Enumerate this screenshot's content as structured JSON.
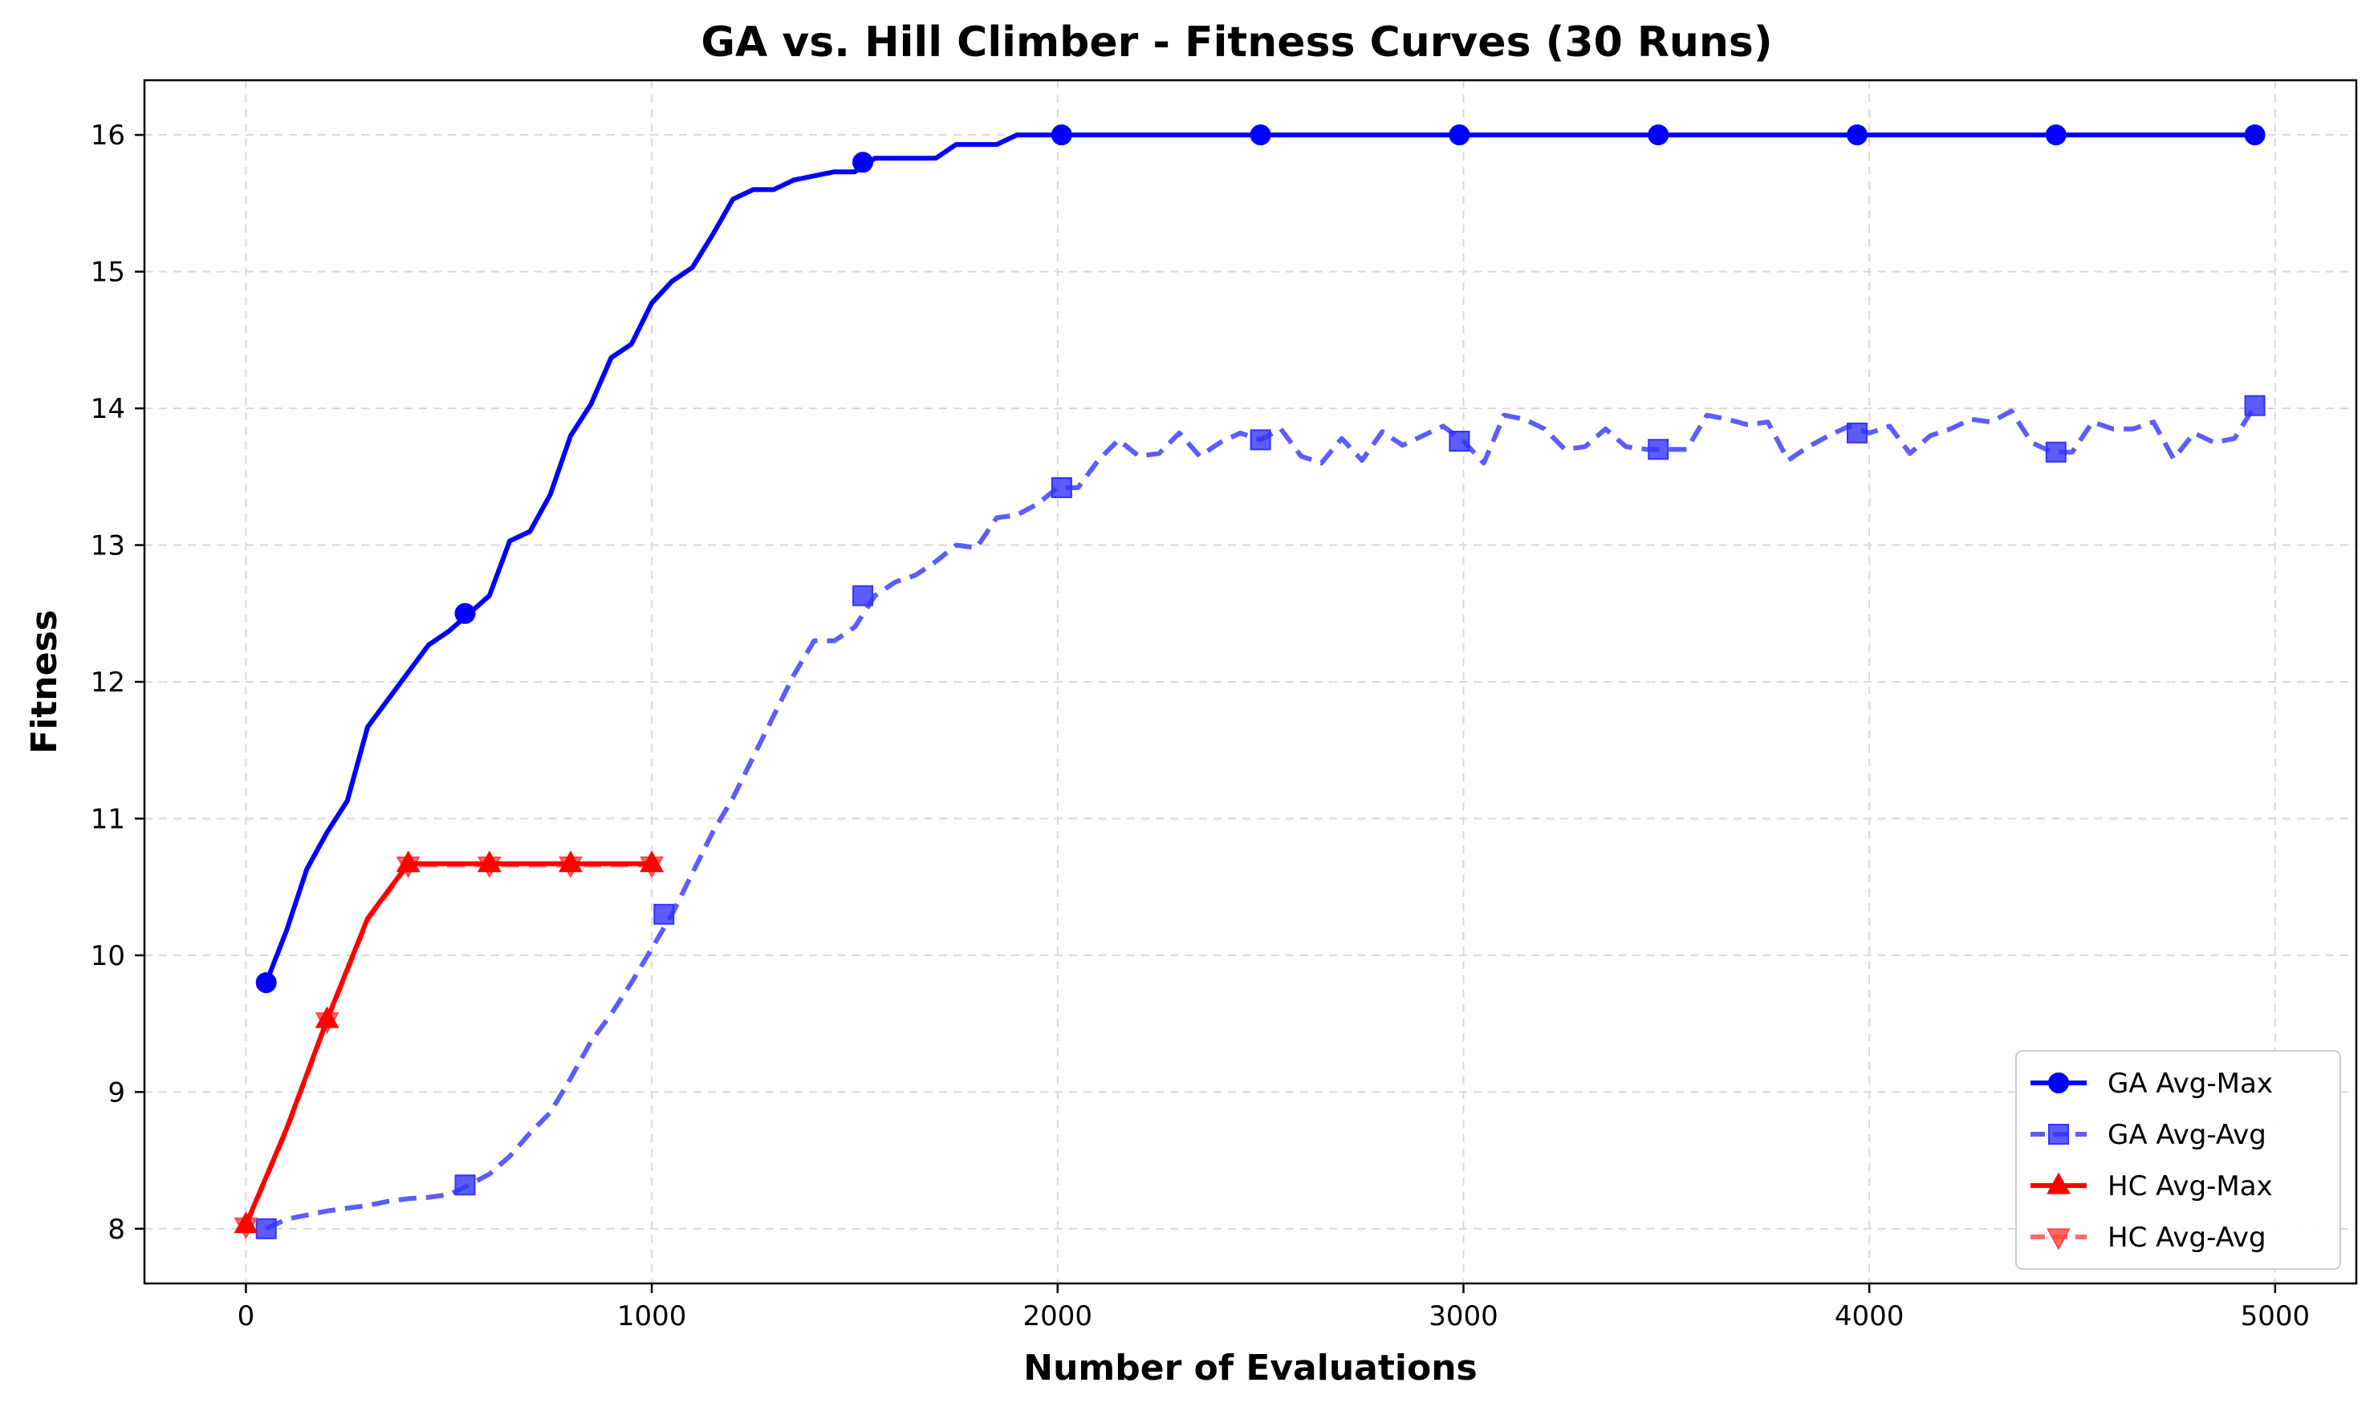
{
  "chart_data": {
    "type": "line",
    "title": "GA vs. Hill Climber - Fitness Curves (30 Runs)",
    "xlabel": "Number of Evaluations",
    "ylabel": "Fitness",
    "xlim": [
      -250,
      5200
    ],
    "ylim": [
      7.6,
      16.4
    ],
    "xticks": [
      0,
      1000,
      2000,
      3000,
      4000,
      5000
    ],
    "yticks": [
      8,
      9,
      10,
      11,
      12,
      13,
      14,
      15,
      16
    ],
    "grid": true,
    "legend_position": "lower-right",
    "series": [
      {
        "name": "GA Avg-Max",
        "color": "#0000ff",
        "linestyle": "solid",
        "marker": "circle",
        "x": [
          50,
          100,
          150,
          200,
          250,
          300,
          350,
          400,
          450,
          500,
          550,
          600,
          650,
          700,
          750,
          800,
          850,
          900,
          950,
          1000,
          1050,
          1100,
          1150,
          1200,
          1250,
          1300,
          1350,
          1400,
          1450,
          1500,
          1550,
          1600,
          1650,
          1700,
          1750,
          1800,
          1850,
          1900,
          1950,
          2000,
          2500,
          3000,
          3500,
          4000,
          4500,
          4950
        ],
        "y": [
          9.8,
          10.18,
          10.63,
          10.9,
          11.13,
          11.67,
          11.87,
          12.07,
          12.27,
          12.37,
          12.5,
          12.63,
          13.03,
          13.1,
          13.37,
          13.8,
          14.03,
          14.37,
          14.47,
          14.77,
          14.93,
          15.03,
          15.27,
          15.53,
          15.6,
          15.6,
          15.67,
          15.7,
          15.73,
          15.73,
          15.83,
          15.83,
          15.83,
          15.83,
          15.93,
          15.93,
          15.93,
          16.0,
          16.0,
          16.0,
          16.0,
          16.0,
          16.0,
          16.0,
          16.0,
          16.0
        ],
        "marker_x": [
          50,
          540,
          1520,
          2010,
          2500,
          2990,
          3480,
          3970,
          4460,
          4950
        ],
        "marker_y": [
          9.8,
          12.5,
          15.8,
          16.0,
          16.0,
          16.0,
          16.0,
          16.0,
          16.0,
          16.0
        ]
      },
      {
        "name": "GA Avg-Avg",
        "color": "#3333ff",
        "linestyle": "dashed",
        "marker": "square",
        "x": [
          50,
          100,
          150,
          200,
          250,
          300,
          350,
          400,
          450,
          500,
          550,
          600,
          650,
          700,
          750,
          800,
          850,
          900,
          950,
          1000,
          1050,
          1100,
          1150,
          1200,
          1250,
          1300,
          1350,
          1400,
          1450,
          1500,
          1550,
          1600,
          1650,
          1700,
          1750,
          1800,
          1850,
          1900,
          1950,
          2000,
          2050,
          2100,
          2150,
          2200,
          2250,
          2300,
          2350,
          2400,
          2450,
          2500,
          2550,
          2600,
          2650,
          2700,
          2750,
          2800,
          2850,
          2900,
          2950,
          3000,
          3050,
          3100,
          3150,
          3200,
          3250,
          3300,
          3350,
          3400,
          3450,
          3500,
          3550,
          3600,
          3650,
          3700,
          3750,
          3800,
          3850,
          3900,
          3950,
          4000,
          4050,
          4100,
          4150,
          4200,
          4250,
          4300,
          4350,
          4400,
          4450,
          4500,
          4550,
          4600,
          4650,
          4700,
          4750,
          4800,
          4850,
          4900,
          4950
        ],
        "y": [
          8.0,
          8.07,
          8.1,
          8.13,
          8.15,
          8.17,
          8.2,
          8.22,
          8.23,
          8.25,
          8.32,
          8.4,
          8.53,
          8.7,
          8.85,
          9.1,
          9.37,
          9.57,
          9.8,
          10.05,
          10.3,
          10.6,
          10.9,
          11.15,
          11.45,
          11.75,
          12.05,
          12.3,
          12.3,
          12.4,
          12.63,
          12.73,
          12.78,
          12.88,
          13.0,
          12.98,
          13.2,
          13.22,
          13.3,
          13.42,
          13.42,
          13.62,
          13.77,
          13.65,
          13.67,
          13.82,
          13.65,
          13.75,
          13.82,
          13.77,
          13.85,
          13.65,
          13.6,
          13.78,
          13.62,
          13.83,
          13.73,
          13.8,
          13.87,
          13.76,
          13.6,
          13.95,
          13.92,
          13.85,
          13.7,
          13.72,
          13.85,
          13.72,
          13.7,
          13.7,
          13.7,
          13.95,
          13.92,
          13.88,
          13.9,
          13.62,
          13.72,
          13.8,
          13.87,
          13.82,
          13.87,
          13.67,
          13.8,
          13.85,
          13.92,
          13.9,
          13.98,
          13.75,
          13.68,
          13.68,
          13.9,
          13.85,
          13.85,
          13.9,
          13.63,
          13.82,
          13.75,
          13.78,
          14.02
        ],
        "marker_x": [
          50,
          540,
          1030,
          1520,
          2010,
          2500,
          2990,
          3480,
          3970,
          4460,
          4950
        ],
        "marker_y": [
          8.0,
          8.32,
          10.3,
          12.63,
          13.42,
          13.77,
          13.76,
          13.7,
          13.82,
          13.68,
          14.02
        ]
      },
      {
        "name": "HC Avg-Max",
        "color": "#ff0000",
        "linestyle": "solid",
        "marker": "triangle-up",
        "x": [
          0,
          100,
          200,
          300,
          400,
          500,
          600,
          700,
          800,
          900,
          1000
        ],
        "y": [
          8.03,
          8.73,
          9.53,
          10.27,
          10.67,
          10.67,
          10.67,
          10.67,
          10.67,
          10.67,
          10.67
        ],
        "marker_x": [
          0,
          200,
          400,
          600,
          800,
          1000
        ],
        "marker_y": [
          8.03,
          9.53,
          10.67,
          10.67,
          10.67,
          10.67
        ]
      },
      {
        "name": "HC Avg-Avg",
        "color": "#ff4444",
        "linestyle": "dashed",
        "marker": "triangle-down",
        "x": [
          0,
          100,
          200,
          300,
          400,
          500,
          600,
          700,
          800,
          900,
          1000
        ],
        "y": [
          8.02,
          8.72,
          9.52,
          10.26,
          10.66,
          10.66,
          10.66,
          10.66,
          10.66,
          10.66,
          10.66
        ],
        "marker_x": [
          0,
          200,
          400,
          600,
          800,
          1000
        ],
        "marker_y": [
          8.02,
          9.52,
          10.66,
          10.66,
          10.66,
          10.66
        ]
      }
    ]
  }
}
